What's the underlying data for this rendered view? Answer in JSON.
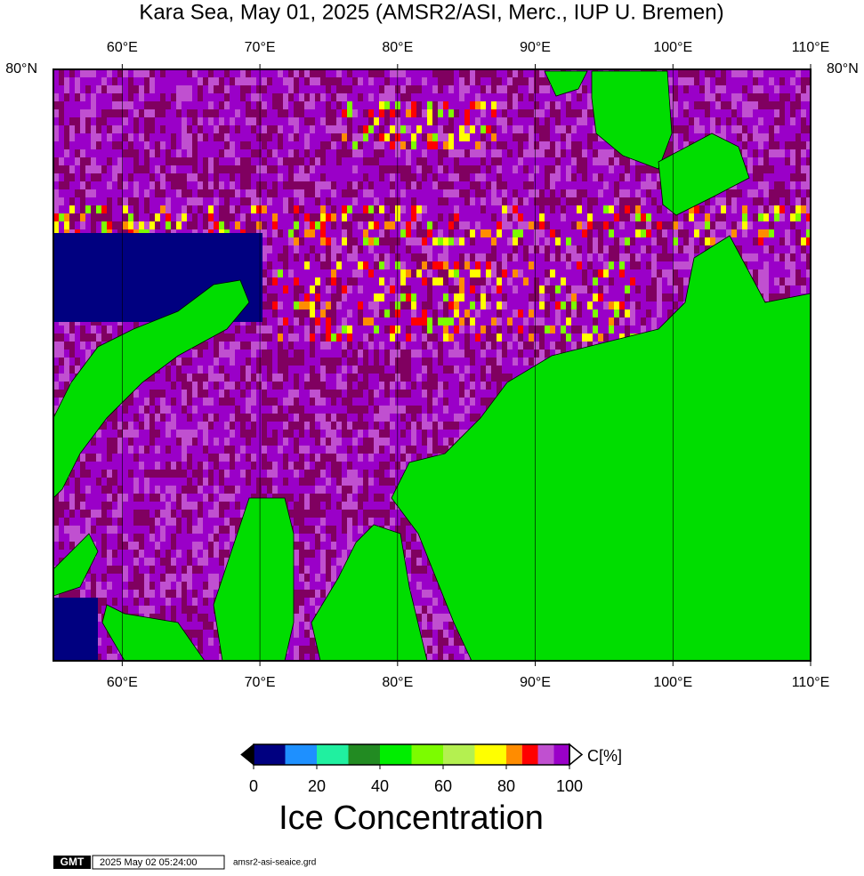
{
  "map": {
    "title": "Kara Sea, May 01, 2025 (AMSR2/ASI, Merc., IUP U. Bremen)",
    "lonlim": [
      55,
      110
    ],
    "lon_ticks": [
      {
        "value": 60,
        "label": "60°E"
      },
      {
        "value": 70,
        "label": "70°E"
      },
      {
        "value": 80,
        "label": "80°E"
      },
      {
        "value": 90,
        "label": "90°E"
      },
      {
        "value": 100,
        "label": "100°E"
      },
      {
        "value": 110,
        "label": "110°E"
      }
    ],
    "lat_ticks": [
      {
        "value": 80,
        "label": "80°N"
      }
    ]
  },
  "colorbar": {
    "levels": [
      0,
      10,
      20,
      30,
      40,
      50,
      60,
      70,
      80,
      85,
      90,
      95,
      100
    ],
    "colors": [
      "#000080",
      "#1e90ff",
      "#20f0a0",
      "#228b22",
      "#00ee00",
      "#7cfc00",
      "#b4f050",
      "#ffff00",
      "#ff8c00",
      "#ff0000",
      "#c050d0",
      "#9a00c8"
    ],
    "ticks": [
      0,
      20,
      40,
      60,
      80,
      100
    ],
    "unit": "C[%]",
    "label": "Ice Concentration"
  },
  "footer": {
    "logo": "GMT",
    "timestamp": "2025 May 02 05:24:00",
    "file": "amsr2-asi-seaice.grd"
  }
}
